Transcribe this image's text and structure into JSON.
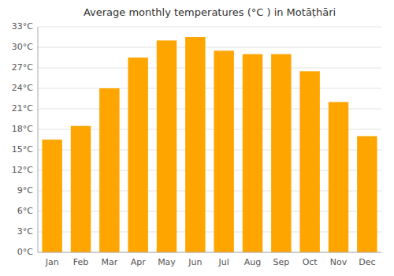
{
  "chart_data": {
    "type": "bar",
    "title": "Average monthly temperatures (°C ) in Motāṭhāri",
    "categories": [
      "Jan",
      "Feb",
      "Mar",
      "Apr",
      "May",
      "Jun",
      "Jul",
      "Aug",
      "Sep",
      "Oct",
      "Nov",
      "Dec"
    ],
    "values": [
      16.5,
      18.5,
      24.0,
      28.5,
      31.0,
      31.5,
      29.5,
      29.0,
      29.0,
      26.5,
      22.0,
      17.0
    ],
    "color": "#FFA500",
    "ylim": [
      0,
      33
    ],
    "yticks": [
      {
        "value": 0,
        "label": "0°C"
      },
      {
        "value": 3,
        "label": "3°C"
      },
      {
        "value": 6,
        "label": "6°C"
      },
      {
        "value": 9,
        "label": "9°C"
      },
      {
        "value": 12,
        "label": "12°C"
      },
      {
        "value": 15,
        "label": "15°C"
      },
      {
        "value": 18,
        "label": "18°C"
      },
      {
        "value": 21,
        "label": "21°C"
      },
      {
        "value": 24,
        "label": "24°C"
      },
      {
        "value": 27,
        "label": "27°C"
      },
      {
        "value": 30,
        "label": "30°C"
      },
      {
        "value": 33,
        "label": "33°C"
      }
    ],
    "grid": true
  }
}
